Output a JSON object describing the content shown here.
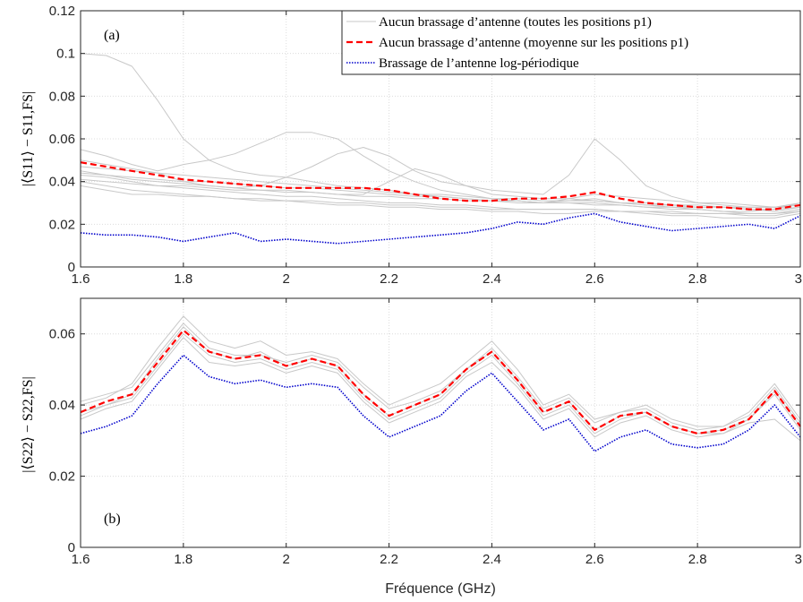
{
  "chart_data": [
    {
      "type": "line",
      "panel_label": "(a)",
      "ylabel": "|⟨S11⟩ − S11,FS|",
      "xlabel": "",
      "xlim": [
        1.6,
        3.0
      ],
      "ylim": [
        0,
        0.12
      ],
      "xticks": [
        "1.6",
        "1.8",
        "2",
        "2.2",
        "2.4",
        "2.6",
        "2.8",
        "3"
      ],
      "yticks": [
        "0",
        "0.02",
        "0.04",
        "0.06",
        "0.08",
        "0.1",
        "0.12"
      ],
      "grid": true,
      "legend_position": "top-right",
      "legend": [
        {
          "label": "Aucun brassage d’antenne (toutes les positions p1)",
          "color": "#c8c8c8",
          "style": "solid"
        },
        {
          "label": "Aucun brassage d’antenne (moyenne sur les positions p1)",
          "color": "#ff0000",
          "style": "dashed"
        },
        {
          "label": "Brassage de l’antenne log-périodique",
          "color": "#0000cc",
          "style": "dotted"
        }
      ],
      "series": [
        {
          "role": "all-positions",
          "color": "#c8c8c8",
          "style": "solid",
          "x": [
            1.6,
            1.65,
            1.7,
            1.75,
            1.8,
            1.85,
            1.9,
            1.95,
            2.0,
            2.05,
            2.1,
            2.15,
            2.2,
            2.25,
            2.3,
            2.35,
            2.4,
            2.45,
            2.5,
            2.55,
            2.6,
            2.65,
            2.7,
            2.75,
            2.8,
            2.85,
            2.9,
            2.95,
            3.0
          ],
          "values": [
            [
              0.1,
              0.099,
              0.094,
              0.078,
              0.06,
              0.05,
              0.045,
              0.043,
              0.042,
              0.04,
              0.038,
              0.037,
              0.036,
              0.034,
              0.033,
              0.032,
              0.031,
              0.031,
              0.03,
              0.03,
              0.03,
              0.029,
              0.028,
              0.028,
              0.028,
              0.028,
              0.027,
              0.027,
              0.028
            ],
            [
              0.055,
              0.052,
              0.048,
              0.045,
              0.048,
              0.05,
              0.053,
              0.058,
              0.063,
              0.063,
              0.06,
              0.052,
              0.045,
              0.04,
              0.036,
              0.034,
              0.032,
              0.031,
              0.03,
              0.031,
              0.032,
              0.03,
              0.029,
              0.028,
              0.027,
              0.026,
              0.026,
              0.027,
              0.03
            ],
            [
              0.05,
              0.048,
              0.046,
              0.044,
              0.04,
              0.038,
              0.037,
              0.038,
              0.042,
              0.047,
              0.053,
              0.056,
              0.052,
              0.045,
              0.04,
              0.038,
              0.036,
              0.035,
              0.034,
              0.043,
              0.06,
              0.05,
              0.038,
              0.033,
              0.03,
              0.029,
              0.028,
              0.028,
              0.029
            ],
            [
              0.045,
              0.043,
              0.041,
              0.04,
              0.039,
              0.038,
              0.037,
              0.036,
              0.036,
              0.035,
              0.034,
              0.034,
              0.04,
              0.046,
              0.043,
              0.038,
              0.034,
              0.033,
              0.032,
              0.032,
              0.031,
              0.03,
              0.029,
              0.029,
              0.028,
              0.028,
              0.027,
              0.026,
              0.028
            ],
            [
              0.043,
              0.042,
              0.04,
              0.038,
              0.038,
              0.037,
              0.036,
              0.036,
              0.035,
              0.035,
              0.034,
              0.033,
              0.033,
              0.032,
              0.032,
              0.031,
              0.031,
              0.03,
              0.03,
              0.032,
              0.034,
              0.033,
              0.032,
              0.031,
              0.03,
              0.03,
              0.029,
              0.028,
              0.03
            ],
            [
              0.041,
              0.04,
              0.039,
              0.038,
              0.037,
              0.036,
              0.035,
              0.034,
              0.033,
              0.033,
              0.032,
              0.031,
              0.03,
              0.03,
              0.029,
              0.029,
              0.028,
              0.027,
              0.027,
              0.027,
              0.027,
              0.026,
              0.026,
              0.025,
              0.025,
              0.025,
              0.024,
              0.024,
              0.026
            ],
            [
              0.04,
              0.038,
              0.036,
              0.035,
              0.034,
              0.033,
              0.032,
              0.031,
              0.031,
              0.03,
              0.029,
              0.029,
              0.028,
              0.028,
              0.027,
              0.027,
              0.026,
              0.026,
              0.025,
              0.025,
              0.026,
              0.026,
              0.025,
              0.024,
              0.024,
              0.023,
              0.023,
              0.023,
              0.025
            ],
            [
              0.038,
              0.036,
              0.034,
              0.034,
              0.033,
              0.033,
              0.032,
              0.032,
              0.031,
              0.031,
              0.03,
              0.03,
              0.029,
              0.029,
              0.028,
              0.028,
              0.027,
              0.027,
              0.027,
              0.027,
              0.027,
              0.026,
              0.026,
              0.026,
              0.025,
              0.025,
              0.025,
              0.025,
              0.026
            ],
            [
              0.047,
              0.046,
              0.045,
              0.044,
              0.043,
              0.042,
              0.041,
              0.04,
              0.039,
              0.038,
              0.037,
              0.036,
              0.035,
              0.034,
              0.034,
              0.033,
              0.032,
              0.032,
              0.031,
              0.031,
              0.031,
              0.03,
              0.03,
              0.029,
              0.029,
              0.028,
              0.028,
              0.028,
              0.029
            ],
            [
              0.044,
              0.043,
              0.042,
              0.041,
              0.04,
              0.04,
              0.039,
              0.038,
              0.037,
              0.037,
              0.036,
              0.035,
              0.034,
              0.033,
              0.033,
              0.032,
              0.031,
              0.031,
              0.03,
              0.03,
              0.029,
              0.029,
              0.028,
              0.027,
              0.027,
              0.026,
              0.025,
              0.025,
              0.027
            ]
          ]
        },
        {
          "role": "mean",
          "color": "#ff0000",
          "style": "dashed",
          "x": [
            1.6,
            1.65,
            1.7,
            1.75,
            1.8,
            1.85,
            1.9,
            1.95,
            2.0,
            2.05,
            2.1,
            2.15,
            2.2,
            2.25,
            2.3,
            2.35,
            2.4,
            2.45,
            2.5,
            2.55,
            2.6,
            2.65,
            2.7,
            2.75,
            2.8,
            2.85,
            2.9,
            2.95,
            3.0
          ],
          "values": [
            0.049,
            0.047,
            0.045,
            0.043,
            0.041,
            0.04,
            0.039,
            0.038,
            0.037,
            0.037,
            0.037,
            0.037,
            0.036,
            0.034,
            0.032,
            0.031,
            0.031,
            0.032,
            0.032,
            0.033,
            0.035,
            0.032,
            0.03,
            0.029,
            0.028,
            0.028,
            0.027,
            0.027,
            0.029
          ]
        },
        {
          "role": "log-periodic",
          "color": "#0000cc",
          "style": "dotted",
          "x": [
            1.6,
            1.65,
            1.7,
            1.75,
            1.8,
            1.85,
            1.9,
            1.95,
            2.0,
            2.05,
            2.1,
            2.15,
            2.2,
            2.25,
            2.3,
            2.35,
            2.4,
            2.45,
            2.5,
            2.55,
            2.6,
            2.65,
            2.7,
            2.75,
            2.8,
            2.85,
            2.9,
            2.95,
            3.0
          ],
          "values": [
            0.016,
            0.015,
            0.015,
            0.014,
            0.012,
            0.014,
            0.016,
            0.012,
            0.013,
            0.012,
            0.011,
            0.012,
            0.013,
            0.014,
            0.015,
            0.016,
            0.018,
            0.021,
            0.02,
            0.023,
            0.025,
            0.021,
            0.019,
            0.017,
            0.018,
            0.019,
            0.02,
            0.018,
            0.024
          ]
        }
      ]
    },
    {
      "type": "line",
      "panel_label": "(b)",
      "ylabel": "|⟨S22⟩ − S22,FS|",
      "xlabel": "Fréquence (GHz)",
      "xlim": [
        1.6,
        3.0
      ],
      "ylim": [
        0,
        0.07
      ],
      "xticks": [
        "1.6",
        "1.8",
        "2",
        "2.2",
        "2.4",
        "2.6",
        "2.8",
        "3"
      ],
      "yticks": [
        "0",
        "0.02",
        "0.04",
        "0.06"
      ],
      "grid": true,
      "series": [
        {
          "role": "all-positions",
          "color": "#c8c8c8",
          "style": "solid",
          "x": [
            1.6,
            1.65,
            1.7,
            1.75,
            1.8,
            1.85,
            1.9,
            1.95,
            2.0,
            2.05,
            2.1,
            2.15,
            2.2,
            2.25,
            2.3,
            2.35,
            2.4,
            2.45,
            2.5,
            2.55,
            2.6,
            2.65,
            2.7,
            2.75,
            2.8,
            2.85,
            2.9,
            2.95,
            3.0
          ],
          "values": [
            [
              0.04,
              0.042,
              0.046,
              0.056,
              0.065,
              0.058,
              0.056,
              0.058,
              0.054,
              0.055,
              0.053,
              0.046,
              0.04,
              0.043,
              0.046,
              0.052,
              0.058,
              0.05,
              0.04,
              0.043,
              0.036,
              0.038,
              0.04,
              0.036,
              0.034,
              0.034,
              0.038,
              0.046,
              0.036
            ],
            [
              0.038,
              0.04,
              0.043,
              0.053,
              0.062,
              0.055,
              0.053,
              0.055,
              0.051,
              0.053,
              0.051,
              0.043,
              0.037,
              0.04,
              0.043,
              0.05,
              0.055,
              0.047,
              0.038,
              0.041,
              0.033,
              0.037,
              0.038,
              0.034,
              0.032,
              0.033,
              0.036,
              0.044,
              0.034
            ],
            [
              0.036,
              0.039,
              0.041,
              0.05,
              0.059,
              0.052,
              0.051,
              0.052,
              0.049,
              0.051,
              0.049,
              0.041,
              0.035,
              0.038,
              0.041,
              0.048,
              0.052,
              0.045,
              0.036,
              0.039,
              0.031,
              0.035,
              0.037,
              0.033,
              0.031,
              0.032,
              0.035,
              0.036,
              0.03
            ],
            [
              0.041,
              0.043,
              0.045,
              0.054,
              0.063,
              0.056,
              0.054,
              0.054,
              0.052,
              0.054,
              0.052,
              0.045,
              0.039,
              0.041,
              0.044,
              0.05,
              0.056,
              0.048,
              0.039,
              0.042,
              0.035,
              0.038,
              0.039,
              0.035,
              0.033,
              0.034,
              0.037,
              0.045,
              0.035
            ],
            [
              0.037,
              0.04,
              0.042,
              0.051,
              0.06,
              0.054,
              0.052,
              0.053,
              0.05,
              0.052,
              0.05,
              0.042,
              0.036,
              0.039,
              0.042,
              0.049,
              0.054,
              0.046,
              0.037,
              0.04,
              0.032,
              0.036,
              0.038,
              0.034,
              0.032,
              0.032,
              0.036,
              0.043,
              0.033
            ]
          ]
        },
        {
          "role": "mean",
          "color": "#ff0000",
          "style": "dashed",
          "x": [
            1.6,
            1.65,
            1.7,
            1.75,
            1.8,
            1.85,
            1.9,
            1.95,
            2.0,
            2.05,
            2.1,
            2.15,
            2.2,
            2.25,
            2.3,
            2.35,
            2.4,
            2.45,
            2.5,
            2.55,
            2.6,
            2.65,
            2.7,
            2.75,
            2.8,
            2.85,
            2.9,
            2.95,
            3.0
          ],
          "values": [
            0.038,
            0.041,
            0.043,
            0.052,
            0.061,
            0.055,
            0.053,
            0.054,
            0.051,
            0.053,
            0.051,
            0.043,
            0.037,
            0.04,
            0.043,
            0.05,
            0.055,
            0.047,
            0.038,
            0.041,
            0.033,
            0.037,
            0.038,
            0.034,
            0.032,
            0.033,
            0.036,
            0.044,
            0.034
          ]
        },
        {
          "role": "log-periodic",
          "color": "#0000cc",
          "style": "dotted",
          "x": [
            1.6,
            1.65,
            1.7,
            1.75,
            1.8,
            1.85,
            1.9,
            1.95,
            2.0,
            2.05,
            2.1,
            2.15,
            2.2,
            2.25,
            2.3,
            2.35,
            2.4,
            2.45,
            2.5,
            2.55,
            2.6,
            2.65,
            2.7,
            2.75,
            2.8,
            2.85,
            2.9,
            2.95,
            3.0
          ],
          "values": [
            0.032,
            0.034,
            0.037,
            0.046,
            0.054,
            0.048,
            0.046,
            0.047,
            0.045,
            0.046,
            0.045,
            0.037,
            0.031,
            0.034,
            0.037,
            0.044,
            0.049,
            0.041,
            0.033,
            0.036,
            0.027,
            0.031,
            0.033,
            0.029,
            0.028,
            0.029,
            0.033,
            0.04,
            0.031
          ]
        }
      ]
    }
  ]
}
